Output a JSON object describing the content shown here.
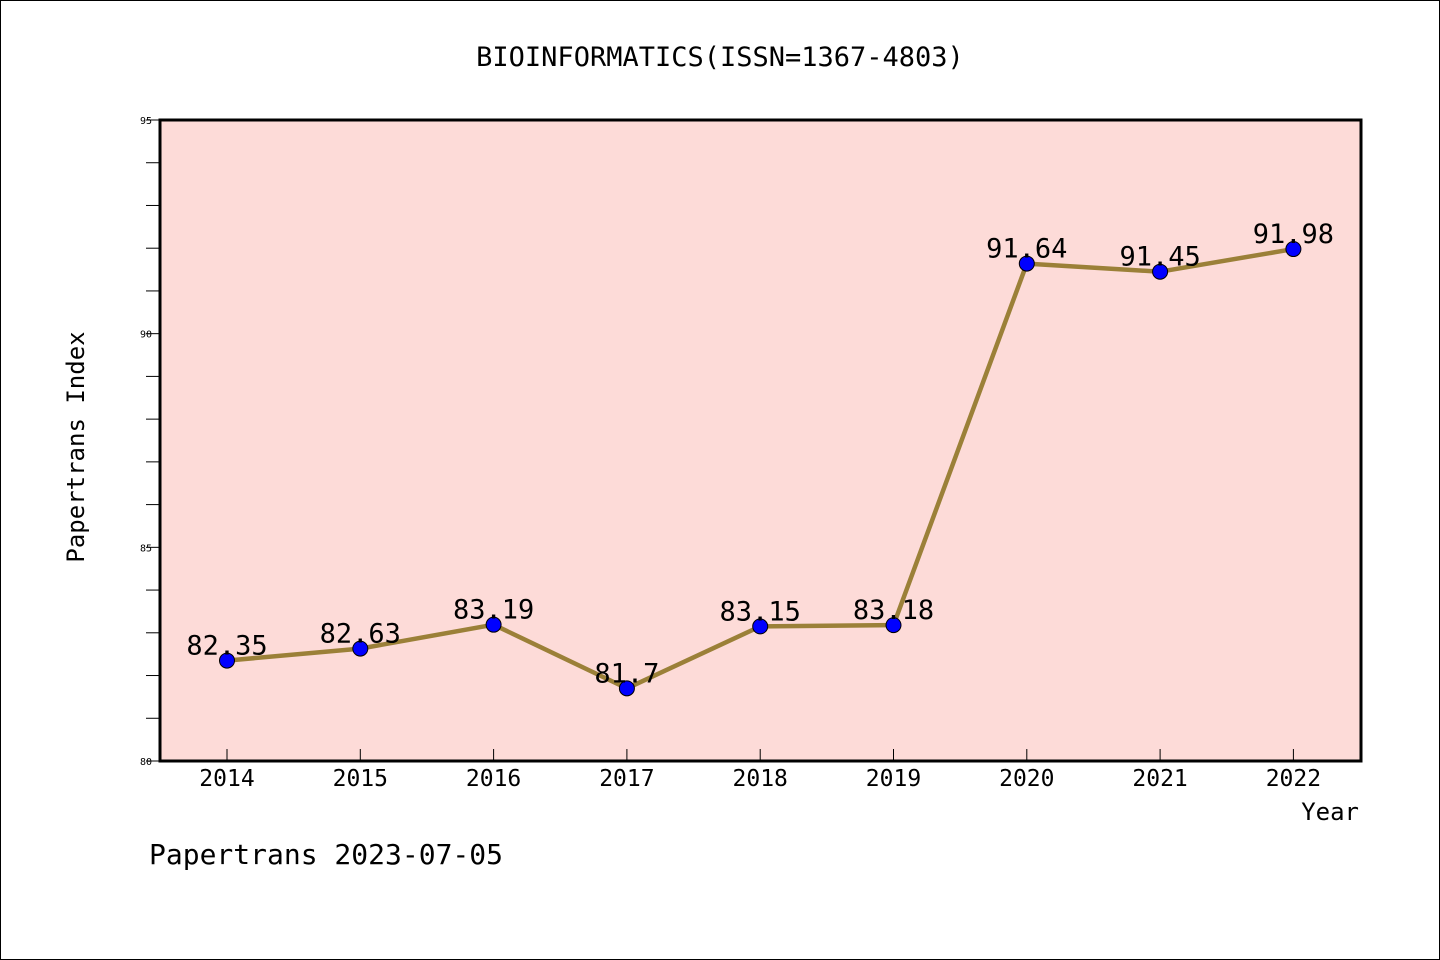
{
  "chart_data": {
    "type": "line",
    "title": "BIOINFORMATICS(ISSN=1367-4803)",
    "xlabel": "Year",
    "ylabel": "Papertrans Index",
    "x": [
      "2014",
      "2015",
      "2016",
      "2017",
      "2018",
      "2019",
      "2020",
      "2021",
      "2022"
    ],
    "series": [
      {
        "values": [
          82.35,
          82.63,
          83.19,
          81.7,
          83.15,
          83.18,
          91.64,
          91.45,
          91.98
        ]
      }
    ],
    "data_labels": [
      "82.35",
      "82.63",
      "83.19",
      "81.7",
      "83.15",
      "83.18",
      "91.64",
      "91.45",
      "91.98"
    ],
    "ylim": [
      80,
      95
    ],
    "yticks": [
      "80",
      "85",
      "90",
      "95"
    ],
    "grid": false,
    "colors": {
      "plot_background": "#fddbd8",
      "line": "#9b8038",
      "marker": "#0000ff"
    }
  },
  "footer": {
    "credit": "Papertrans 2023-07-05"
  }
}
